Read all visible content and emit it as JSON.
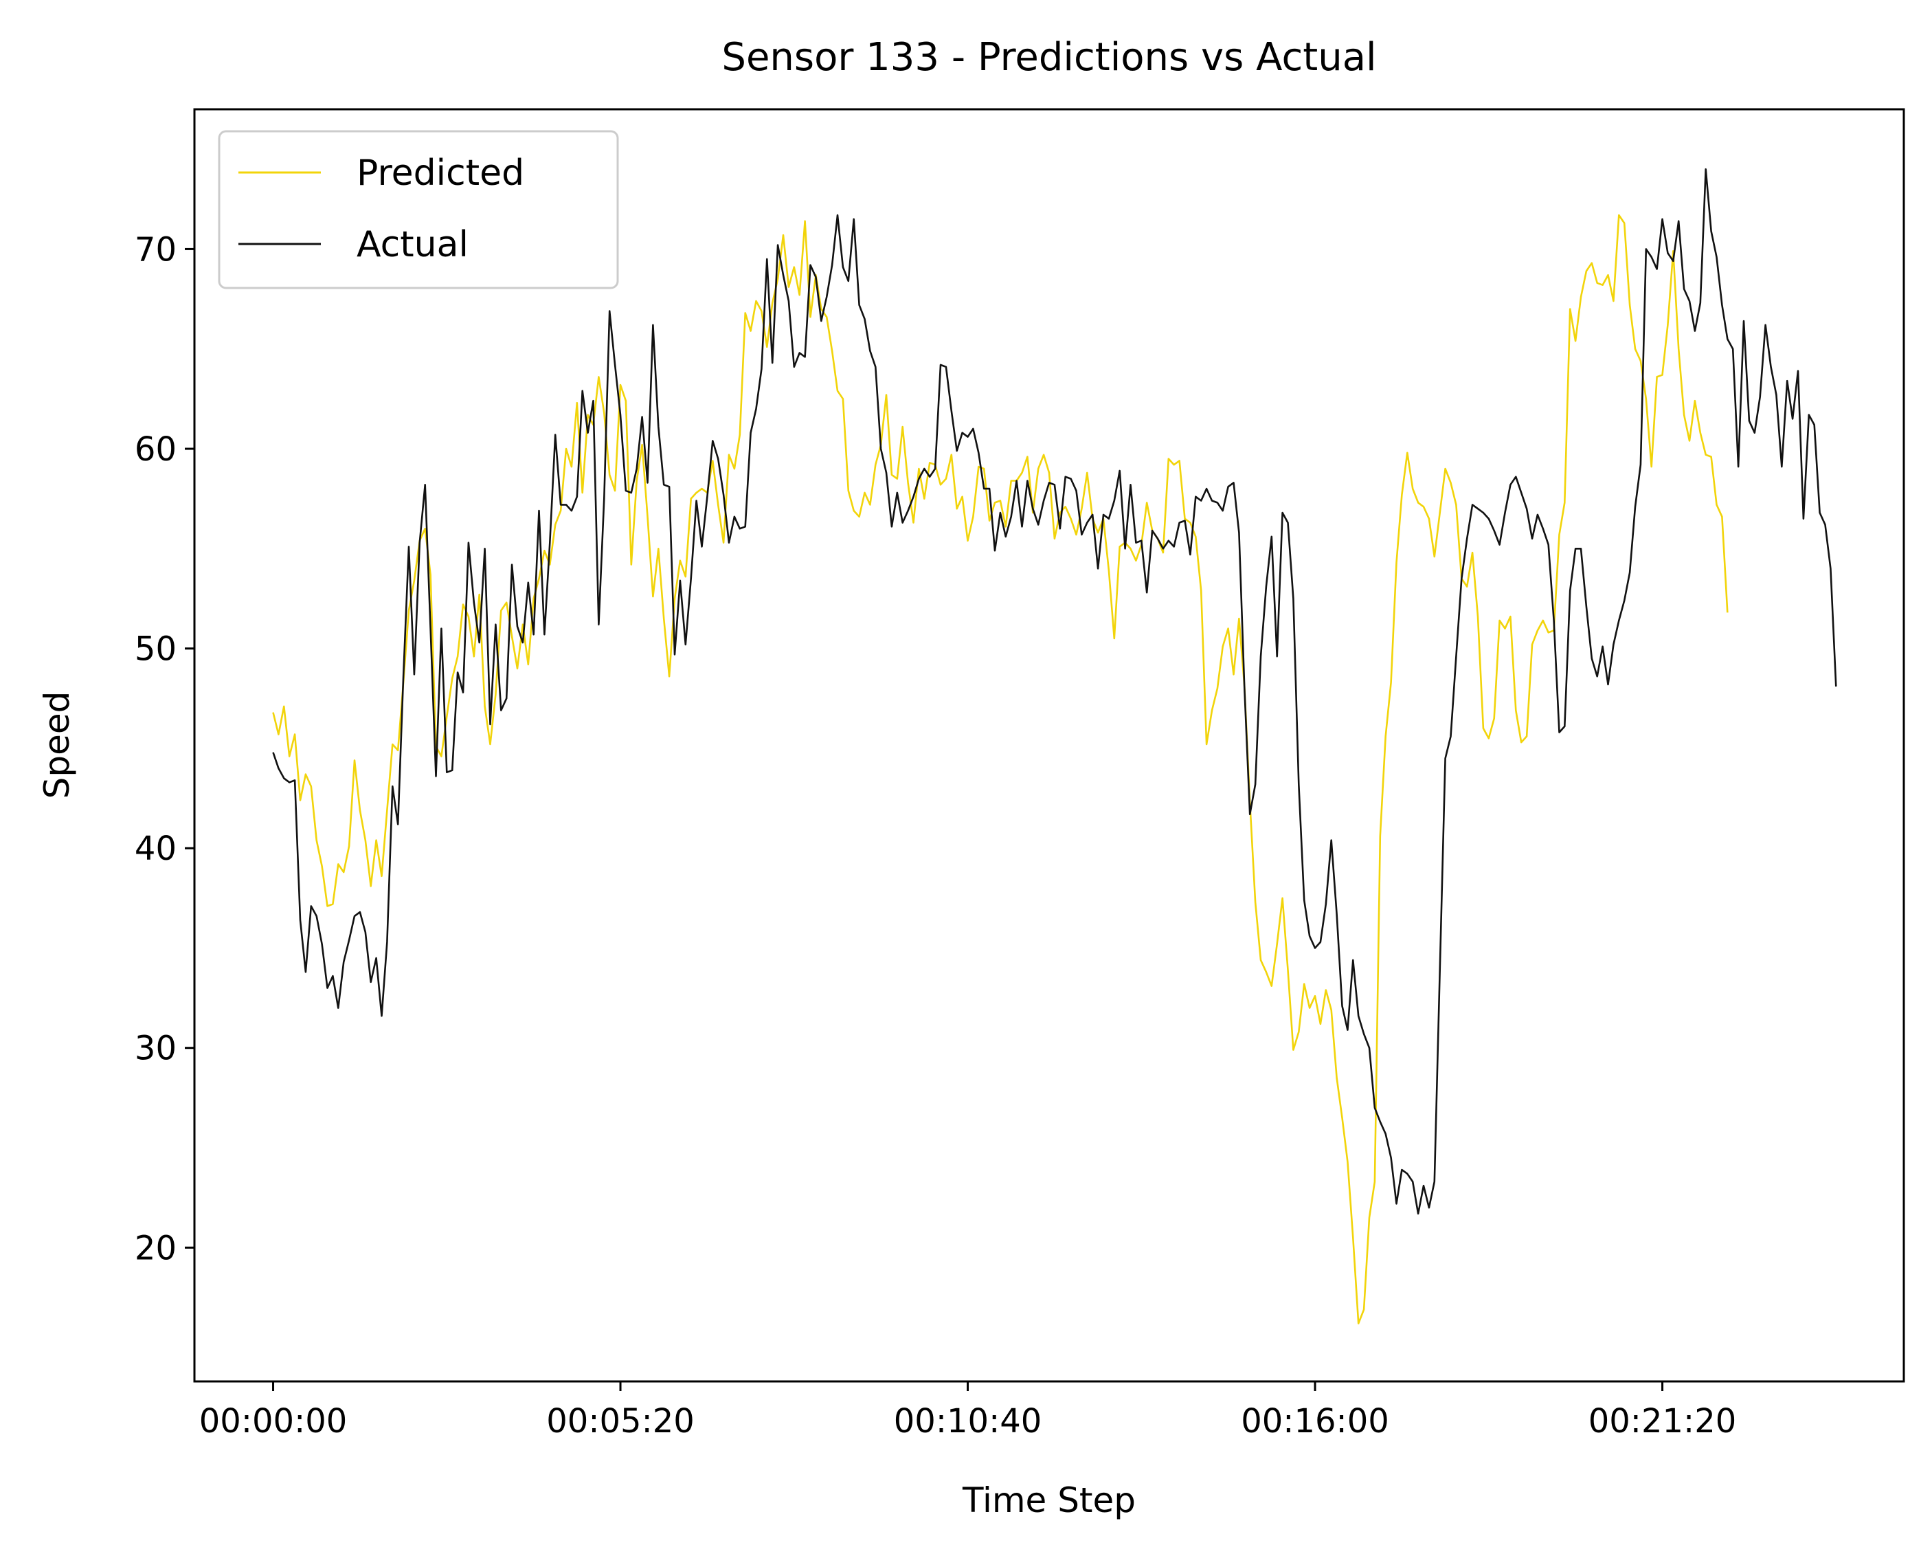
{
  "chart_data": {
    "type": "line",
    "title": "Sensor 133 - Predictions vs Actual",
    "xlabel": "Time Step",
    "ylabel": "Speed",
    "x_start_label": "00:00:00",
    "x_step_seconds": 5,
    "x_ticks": [
      {
        "label": "00:00:00",
        "index": 0
      },
      {
        "label": "00:05:20",
        "index": 64
      },
      {
        "label": "00:10:40",
        "index": 128
      },
      {
        "label": "00:16:00",
        "index": 192
      },
      {
        "label": "00:21:20",
        "index": 256
      }
    ],
    "y_ticks": [
      20,
      30,
      40,
      50,
      60,
      70
    ],
    "xlim": [
      -14.5,
      300.5
    ],
    "ylim": [
      13.3,
      77.0
    ],
    "grid": false,
    "legend_position": "upper-left",
    "series": [
      {
        "name": "Predicted",
        "color": "#f2d40a",
        "values": [
          46.8,
          45.7,
          47.1,
          44.6,
          45.7,
          42.4,
          43.7,
          43.1,
          40.4,
          39.1,
          37.1,
          37.2,
          39.2,
          38.8,
          40.1,
          44.4,
          41.9,
          40.4,
          38.1,
          40.4,
          38.6,
          41.9,
          45.2,
          44.9,
          48.3,
          51.9,
          53.4,
          55.4,
          56.0,
          53.7,
          45.1,
          44.6,
          46.6,
          48.5,
          49.6,
          52.2,
          51.6,
          49.6,
          52.7,
          47.1,
          45.2,
          47.7,
          51.9,
          52.3,
          50.6,
          49.0,
          51.2,
          49.2,
          52.5,
          53.5,
          54.9,
          54.2,
          56.2,
          56.9,
          60.0,
          59.1,
          62.3,
          57.8,
          61.7,
          61.2,
          63.6,
          61.8,
          58.7,
          57.9,
          63.2,
          62.4,
          54.2,
          58.4,
          60.2,
          56.6,
          52.6,
          55.0,
          51.5,
          48.6,
          52.5,
          54.4,
          53.6,
          57.5,
          57.8,
          58.0,
          57.8,
          59.4,
          57.2,
          55.3,
          59.7,
          59.0,
          60.7,
          66.8,
          65.9,
          67.4,
          66.9,
          65.1,
          67.3,
          68.5,
          70.7,
          68.1,
          69.1,
          67.7,
          71.4,
          66.6,
          68.7,
          67.0,
          66.6,
          64.9,
          62.9,
          62.5,
          57.9,
          56.9,
          56.6,
          57.8,
          57.2,
          59.2,
          60.2,
          62.7,
          58.7,
          58.5,
          61.1,
          58.3,
          56.3,
          59.0,
          57.5,
          59.3,
          59.2,
          58.2,
          58.5,
          59.7,
          57.0,
          57.6,
          55.4,
          56.6,
          59.1,
          59.0,
          56.4,
          57.3,
          57.4,
          56.1,
          58.4,
          58.4,
          58.8,
          59.6,
          56.8,
          59.0,
          59.7,
          58.8,
          55.5,
          56.8,
          57.1,
          56.5,
          55.7,
          57.0,
          58.8,
          56.5,
          55.8,
          56.5,
          53.9,
          50.5,
          55.1,
          55.3,
          55.0,
          54.4,
          55.2,
          57.3,
          55.9,
          55.5,
          54.8,
          59.5,
          59.2,
          59.4,
          56.5,
          56.3,
          55.6,
          52.9,
          45.2,
          46.9,
          48.0,
          50.1,
          51.0,
          48.7,
          51.5,
          48.1,
          42.3,
          37.3,
          34.4,
          33.8,
          33.1,
          35.2,
          37.5,
          33.9,
          29.9,
          30.8,
          33.2,
          32.0,
          32.6,
          31.2,
          32.9,
          31.9,
          28.5,
          26.5,
          24.3,
          20.5,
          16.2,
          16.9,
          21.5,
          23.3,
          40.6,
          45.6,
          48.3,
          54.3,
          57.7,
          59.8,
          58.0,
          57.3,
          57.1,
          56.5,
          54.6,
          56.8,
          59.0,
          58.3,
          57.2,
          53.5,
          53.1,
          54.8,
          51.6,
          46.0,
          45.5,
          46.5,
          51.4,
          51.0,
          51.6,
          46.9,
          45.3,
          45.6,
          50.2,
          50.9,
          51.4,
          50.8,
          50.9,
          55.7,
          57.3,
          67.0,
          65.4,
          67.6,
          68.9,
          69.3,
          68.3,
          68.2,
          68.7,
          67.4,
          71.7,
          71.3,
          67.2,
          65.0,
          64.4,
          62.5,
          59.1,
          63.6,
          63.7,
          66.2,
          69.9,
          65.0,
          61.7,
          60.4,
          62.4,
          60.8,
          59.7,
          59.6,
          57.2,
          56.6,
          51.8
        ]
      },
      {
        "name": "Actual",
        "color": "#111111",
        "values": [
          44.8,
          44.0,
          43.5,
          43.3,
          43.4,
          36.4,
          33.8,
          37.1,
          36.6,
          35.2,
          33.0,
          33.6,
          32.0,
          34.3,
          35.4,
          36.6,
          36.8,
          35.8,
          33.3,
          34.5,
          31.6,
          35.3,
          43.1,
          41.2,
          48.6,
          55.1,
          48.7,
          55.3,
          58.2,
          51.0,
          43.6,
          51.0,
          43.8,
          43.9,
          48.8,
          47.8,
          55.3,
          52.3,
          50.3,
          55.0,
          46.2,
          51.2,
          46.9,
          47.5,
          54.2,
          51.1,
          50.3,
          53.3,
          50.7,
          56.9,
          50.7,
          55.3,
          60.7,
          57.2,
          57.2,
          56.9,
          57.6,
          62.9,
          60.8,
          62.4,
          51.2,
          57.5,
          66.9,
          64.2,
          61.7,
          57.9,
          57.8,
          59.0,
          61.6,
          58.3,
          66.2,
          61.1,
          58.2,
          58.1,
          49.7,
          53.4,
          50.2,
          53.5,
          57.4,
          55.1,
          57.6,
          60.4,
          59.5,
          57.7,
          55.3,
          56.6,
          56.0,
          56.1,
          60.8,
          62.0,
          64.0,
          69.5,
          64.3,
          70.2,
          68.7,
          67.4,
          64.1,
          64.8,
          64.6,
          69.2,
          68.6,
          66.4,
          67.6,
          69.2,
          71.7,
          69.1,
          68.4,
          71.5,
          67.2,
          66.5,
          64.9,
          64.1,
          60.0,
          58.8,
          56.1,
          57.8,
          56.3,
          56.9,
          57.6,
          58.5,
          59.0,
          58.6,
          59.0,
          64.2,
          64.1,
          61.9,
          59.9,
          60.8,
          60.6,
          61.0,
          59.8,
          58.0,
          58.0,
          54.9,
          56.8,
          55.6,
          56.6,
          58.4,
          56.1,
          58.4,
          57.0,
          56.2,
          57.4,
          58.3,
          58.2,
          56.0,
          58.6,
          58.5,
          57.9,
          55.7,
          56.3,
          56.7,
          54.0,
          56.7,
          56.5,
          57.4,
          58.9,
          55.0,
          58.2,
          55.3,
          55.4,
          52.8,
          55.9,
          55.5,
          55.0,
          55.4,
          55.1,
          56.3,
          56.4,
          54.7,
          57.6,
          57.4,
          58.0,
          57.4,
          57.3,
          56.9,
          58.1,
          58.3,
          55.8,
          48.0,
          41.7,
          43.2,
          49.6,
          53.1,
          55.6,
          49.6,
          56.8,
          56.3,
          52.5,
          43.2,
          37.4,
          35.6,
          35.0,
          35.3,
          37.2,
          40.4,
          36.7,
          32.1,
          30.9,
          34.4,
          31.6,
          30.7,
          30.0,
          27.0,
          26.3,
          25.7,
          24.5,
          22.2,
          23.9,
          23.7,
          23.3,
          21.7,
          23.1,
          22.0,
          23.3,
          33.9,
          44.5,
          45.6,
          49.6,
          53.5,
          55.5,
          57.2,
          57.0,
          56.8,
          56.5,
          55.9,
          55.2,
          56.8,
          58.2,
          58.6,
          57.8,
          57.0,
          55.5,
          56.7,
          56.0,
          55.2,
          51.4,
          45.8,
          46.1,
          52.9,
          55.0,
          55.0,
          52.1,
          49.5,
          48.6,
          50.1,
          48.2,
          50.2,
          51.4,
          52.4,
          53.8,
          57.1,
          59.2,
          70.0,
          69.6,
          69.0,
          71.5,
          69.8,
          69.4,
          71.4,
          68.0,
          67.4,
          65.9,
          67.3,
          74.0,
          70.9,
          69.6,
          67.2,
          65.5,
          65.0,
          59.1,
          66.4,
          61.4,
          60.8,
          62.6,
          66.2,
          64.1,
          62.7,
          59.1,
          63.4,
          61.5,
          63.9,
          56.5,
          61.7,
          61.2,
          56.8,
          56.2,
          54.0,
          48.1
        ]
      }
    ]
  }
}
